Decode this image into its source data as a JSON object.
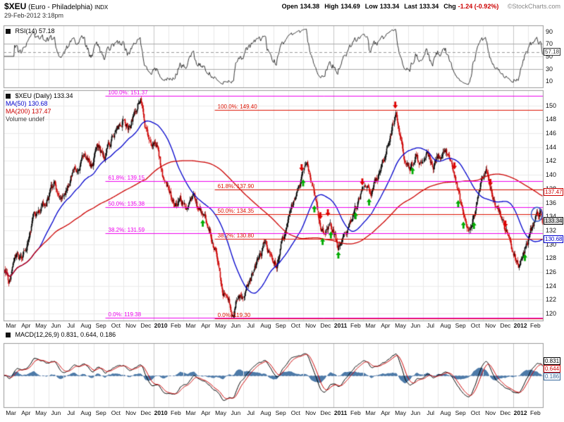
{
  "header": {
    "symbol": "$XEU",
    "name": "(Euro - Philadelphia)",
    "exchange": "INDX",
    "datetime": "29-Feb-2012 3:18pm",
    "copyright": "©StockCharts.com",
    "quote": [
      {
        "label": "Open",
        "value": "134.38"
      },
      {
        "label": "High",
        "value": "134.69"
      },
      {
        "label": "Low",
        "value": "133.34"
      },
      {
        "label": "Last",
        "value": "133.34"
      },
      {
        "label": "Chg",
        "value": "-1.24 (-0.92%)",
        "negative": true
      }
    ]
  },
  "legends": {
    "rsi": "RSI(14) 57.18",
    "price": "$XEU (Daily) 133.34",
    "ma50": "MA(50) 130.68",
    "ma200": "MA(200) 137.47",
    "volume": "Volume undef",
    "macd": "MACD(12,26,9) 0.831, 0.644, 0.186"
  },
  "chart_data": {
    "type": "candlestick",
    "title": "$XEU (Euro - Philadelphia) INDX Daily",
    "x_axis": {
      "months": [
        "Mar",
        "Apr",
        "May",
        "Jun",
        "Jul",
        "Aug",
        "Sep",
        "Oct",
        "Nov",
        "Dec",
        "2010",
        "Feb",
        "Mar",
        "Apr",
        "May",
        "Jun",
        "Jul",
        "Aug",
        "Sep",
        "Oct",
        "Nov",
        "Dec",
        "2011",
        "Feb",
        "Mar",
        "Apr",
        "May",
        "Jun",
        "Jul",
        "Aug",
        "Sep",
        "Oct",
        "Nov",
        "Dec",
        "2012",
        "Feb"
      ],
      "year_starts": [
        10,
        22,
        34
      ]
    },
    "price_axis": {
      "min": 119.0,
      "max": 152.2,
      "ticks": [
        150,
        148,
        146,
        144,
        142,
        140,
        138,
        136,
        134,
        132,
        130,
        128,
        126,
        124,
        122,
        120
      ]
    },
    "bars_per_month": 21,
    "candle_up_color": "#000000",
    "candle_down_color": "#cc0000",
    "price_keypoints": [
      [
        0,
        126.8
      ],
      [
        0.3,
        124.6
      ],
      [
        0.8,
        128.0
      ],
      [
        1.2,
        127.2
      ],
      [
        2,
        133.5
      ],
      [
        2.5,
        135.5
      ],
      [
        3,
        137.0
      ],
      [
        3.4,
        139.0
      ],
      [
        3.8,
        136.2
      ],
      [
        4.3,
        138.5
      ],
      [
        5,
        141.8
      ],
      [
        5.4,
        143.0
      ],
      [
        5.8,
        141.2
      ],
      [
        6.3,
        143.8
      ],
      [
        6.7,
        142.0
      ],
      [
        7.2,
        145.0
      ],
      [
        7.6,
        147.0
      ],
      [
        8,
        147.8
      ],
      [
        8.4,
        146.2
      ],
      [
        8.8,
        149.5
      ],
      [
        9.1,
        151.2
      ],
      [
        9.4,
        147.0
      ],
      [
        9.8,
        144.0
      ],
      [
        10.2,
        143.8
      ],
      [
        10.6,
        140.0
      ],
      [
        11,
        138.0
      ],
      [
        11.4,
        135.8
      ],
      [
        11.8,
        136.8
      ],
      [
        12.2,
        135.0
      ],
      [
        12.6,
        136.8
      ],
      [
        13,
        135.2
      ],
      [
        13.4,
        134.2
      ],
      [
        13.8,
        131.5
      ],
      [
        14.2,
        128.0
      ],
      [
        14.6,
        123.5
      ],
      [
        15,
        122.0
      ],
      [
        15.3,
        119.8
      ],
      [
        15.7,
        123.0
      ],
      [
        16,
        122.2
      ],
      [
        16.4,
        124.5
      ],
      [
        17,
        127.5
      ],
      [
        17.4,
        130.2
      ],
      [
        17.8,
        128.0
      ],
      [
        18.2,
        126.8
      ],
      [
        18.6,
        130.5
      ],
      [
        19,
        133.0
      ],
      [
        19.4,
        136.5
      ],
      [
        19.8,
        139.0
      ],
      [
        20.2,
        141.5
      ],
      [
        20.5,
        139.0
      ],
      [
        20.8,
        136.0
      ],
      [
        21.1,
        133.0
      ],
      [
        21.4,
        131.2
      ],
      [
        21.7,
        133.5
      ],
      [
        22,
        132.0
      ],
      [
        22.3,
        129.6
      ],
      [
        22.7,
        131.5
      ],
      [
        23,
        132.5
      ],
      [
        23.4,
        135.0
      ],
      [
        23.8,
        137.0
      ],
      [
        24.2,
        138.5
      ],
      [
        24.5,
        137.0
      ],
      [
        24.8,
        139.0
      ],
      [
        25.2,
        141.0
      ],
      [
        25.6,
        144.0
      ],
      [
        26,
        147.5
      ],
      [
        26.2,
        149.0
      ],
      [
        26.5,
        144.5
      ],
      [
        26.8,
        142.0
      ],
      [
        27.1,
        141.0
      ],
      [
        27.5,
        143.0
      ],
      [
        27.8,
        141.5
      ],
      [
        28.2,
        144.0
      ],
      [
        28.6,
        141.0
      ],
      [
        29,
        142.5
      ],
      [
        29.4,
        144.0
      ],
      [
        29.8,
        142.5
      ],
      [
        30.2,
        139.0
      ],
      [
        30.5,
        135.5
      ],
      [
        30.8,
        133.5
      ],
      [
        31.1,
        131.5
      ],
      [
        31.5,
        135.0
      ],
      [
        31.9,
        139.0
      ],
      [
        32.2,
        141.0
      ],
      [
        32.5,
        137.5
      ],
      [
        32.8,
        135.5
      ],
      [
        33.1,
        134.0
      ],
      [
        33.5,
        131.5
      ],
      [
        33.8,
        130.0
      ],
      [
        34.1,
        128.5
      ],
      [
        34.4,
        127.4
      ],
      [
        34.7,
        129.0
      ],
      [
        35,
        130.5
      ],
      [
        35.3,
        132.5
      ],
      [
        35.6,
        134.3
      ],
      [
        35.9,
        134.6
      ],
      [
        36,
        133.34
      ]
    ],
    "ma50": {
      "period": 50,
      "value": 130.68,
      "color": "#0000cc"
    },
    "ma200": {
      "period": 200,
      "value": 137.47,
      "color": "#cc0000"
    },
    "fib_sets": [
      {
        "name": "fib-retracement-2009-high",
        "color": "#ee00ee",
        "x_start_month": 6.8,
        "levels": [
          {
            "label": "100.0%: 151.37",
            "value": 151.37
          },
          {
            "label": "61.8%: 139.15",
            "value": 139.15
          },
          {
            "label": "50.0%: 135.38",
            "value": 135.38
          },
          {
            "label": "38.2%: 131.59",
            "value": 131.59
          },
          {
            "label": "0.0%: 119.38",
            "value": 119.38
          }
        ]
      },
      {
        "name": "fib-retracement-2011-high",
        "color": "#dd1100",
        "x_start_month": 14.1,
        "levels": [
          {
            "label": "100.0%: 149.40",
            "value": 149.4
          },
          {
            "label": "61.8%: 137.90",
            "value": 137.9
          },
          {
            "label": "50.0%: 134.35",
            "value": 134.35
          },
          {
            "label": "38.2%: 130.80",
            "value": 130.8
          },
          {
            "label": "0.0%: 119.30",
            "value": 119.3
          }
        ]
      }
    ],
    "arrows": {
      "red_down_months": [
        19.9,
        21.15,
        21.65,
        23.95,
        26.15,
        30.1,
        32.5,
        33.5
      ],
      "green_up_months": [
        13.3,
        20.0,
        20.75,
        21.3,
        21.85,
        22.35,
        23.5,
        24.4,
        27.3,
        30.35,
        30.7,
        31.4,
        34.8
      ],
      "red_color": "#dd0000",
      "green_color": "#00aa00"
    },
    "ellipse": {
      "month": 35.6,
      "price": 134.3,
      "color": "#3355cc"
    },
    "rsi_panel": {
      "label": "RSI(14)",
      "value": 57.18,
      "value_text": "57.18",
      "ticks": [
        90,
        70,
        50,
        30,
        10
      ],
      "range": [
        0,
        100
      ],
      "guide_lines": [
        70,
        50,
        30
      ]
    },
    "macd_panel": {
      "range": [
        -3.3,
        3.3
      ],
      "nums": [
        0.831,
        0.644,
        0.186
      ],
      "boxes": [
        {
          "text": "0.831",
          "color": "#000000"
        },
        {
          "text": "0.644",
          "color": "#cc0000"
        },
        {
          "text": "0.186",
          "color": "#336699"
        }
      ]
    },
    "price_boxes": [
      {
        "text": "137.47",
        "value": 137.47,
        "color": "#cc0000",
        "bg": "#ffffff"
      },
      {
        "text": "133.34",
        "value": 133.34,
        "color": "#111111",
        "bg": "#d8d8d8"
      },
      {
        "text": "130.68",
        "value": 130.68,
        "color": "#0000cc",
        "bg": "#ffffff"
      }
    ]
  }
}
